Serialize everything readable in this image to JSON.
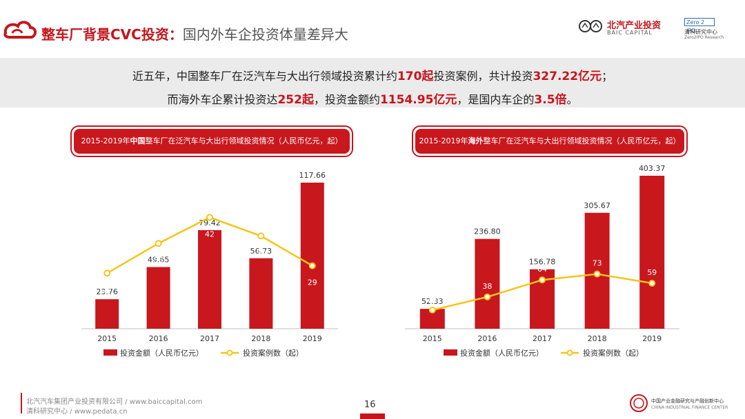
{
  "header": {
    "title": "整车厂背景CVC投资：",
    "subtitle": "国内外车企投资体量差异大",
    "brand1_name": "北汽产业投资",
    "brand1_en": "BAIC CAPITAL",
    "brand2_logo": "Zero 2 IPO",
    "brand2_name": "清科研究中心",
    "brand2_en": "Zero2IPO Research"
  },
  "summary": {
    "line1_a": "近五年，中国整车厂在泛汽车与大出行领域投资累计约",
    "line1_b": "170起",
    "line1_c": "投资案例，共计投资",
    "line1_d": "327.22亿元",
    "line1_e": "；",
    "line2_a": "而海外车企累计投资达",
    "line2_b": "252起",
    "line2_c": "，投资金额约",
    "line2_d": "1154.95亿元",
    "line2_e": "，是国内车企的",
    "line2_f": "3.5倍",
    "line2_g": "。"
  },
  "chart_titles": [
    {
      "pre": "2015-2019年",
      "em": "中国",
      "post": "整车厂在泛汽车与大出行领域投资情况（人民币亿元，起）"
    },
    {
      "pre": "2015-2019年",
      "em": "海外",
      "post": "整车厂在泛汽车与大出行领域投资情况（人民币亿元，起）"
    }
  ],
  "colors": {
    "accent": "#c4161c",
    "bar": "#c9171e",
    "line": "#f5c518",
    "band": "#ebebeb"
  },
  "chart_data": [
    {
      "type": "bar",
      "categories": [
        "2015",
        "2016",
        "2017",
        "2018",
        "2019"
      ],
      "series": [
        {
          "name": "投资金额（人民币亿元）",
          "type": "bar",
          "values": [
            23.76,
            49.65,
            79.42,
            56.73,
            117.66
          ]
        },
        {
          "name": "投资案例数（起）",
          "type": "line",
          "values": [
            27,
            35,
            42,
            37,
            29
          ]
        }
      ],
      "legend_position": "bottom"
    },
    {
      "type": "bar",
      "categories": [
        "2015",
        "2016",
        "2017",
        "2018",
        "2019"
      ],
      "series": [
        {
          "name": "投资金额（人民币亿元）",
          "type": "bar",
          "values": [
            52.33,
            236.8,
            156.78,
            305.67,
            403.37
          ]
        },
        {
          "name": "投资案例数（起）",
          "type": "line",
          "values": [
            18,
            38,
            64,
            73,
            59
          ]
        }
      ],
      "legend_position": "bottom"
    }
  ],
  "footer": {
    "line1": "北汽汽车集团产业投资有限公司 / www.baiccapital.com",
    "line2": "清科研究中心 / www.pedata.cn",
    "page": "16",
    "logo_cn": "中国产业金融研究与产融创新中心",
    "logo_en": "CHINA INDUSTRIAL FINANCE CENTER"
  }
}
